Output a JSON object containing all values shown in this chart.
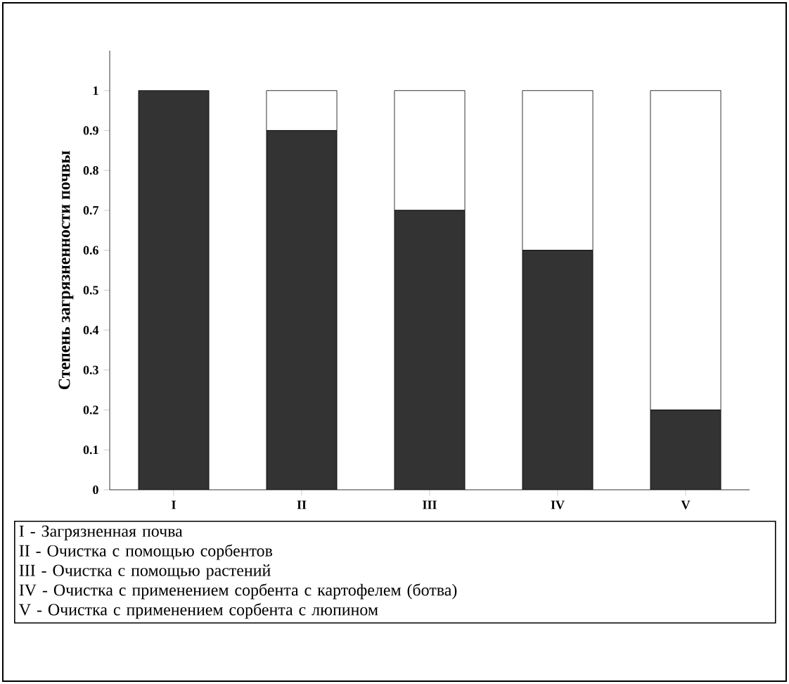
{
  "chart_data": {
    "type": "bar",
    "stacked": true,
    "ylabel": "Степень загрязненности почвы",
    "categories": [
      "I",
      "II",
      "III",
      "IV",
      "V"
    ],
    "series": [
      {
        "color": "#333333",
        "values": [
          1,
          0.9,
          0.7,
          0.6,
          0.2
        ]
      },
      {
        "color": "#ffffff",
        "values": [
          0,
          0.1,
          0.3,
          0.4,
          0.8
        ]
      }
    ],
    "ylim": [
      0,
      1.1
    ],
    "yticks": [
      0,
      0.1,
      0.2,
      0.3,
      0.4,
      0.5,
      0.6,
      0.7,
      0.8,
      0.9,
      1
    ],
    "grid": false,
    "annotations": [
      "I - Загрязненная почва",
      "II - Очистка с помощью сорбентов",
      "III - Очистка с помощью растений",
      "IV - Очистка с применением сорбента с картофелем (ботва)",
      "V - Очистка с применением сорбента с люпином"
    ]
  }
}
